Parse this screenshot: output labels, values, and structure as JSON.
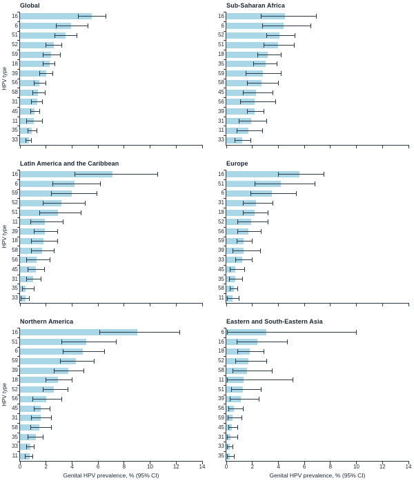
{
  "figure": {
    "xlabel": "Genital HPV prevalence, % (95% CI)",
    "ylabel": "HPV type",
    "colors": {
      "bar": "#a9d7e8",
      "ink": "#2a3744",
      "text": "#1b2531"
    }
  },
  "chart_data": [
    {
      "type": "bar",
      "orientation": "horizontal",
      "title": "Global",
      "xlabel": "Genital HPV prevalence, % (95% CI)",
      "ylabel": "HPV type",
      "xlim": [
        0,
        14
      ],
      "xticks": [
        0,
        2,
        4,
        6,
        8,
        10,
        12,
        14
      ],
      "grid": false,
      "categories": [
        "16",
        "6",
        "51",
        "52",
        "59",
        "18",
        "39",
        "56",
        "58",
        "31",
        "45",
        "11",
        "35",
        "33"
      ],
      "values": [
        5.5,
        3.9,
        3.5,
        2.6,
        2.4,
        2.3,
        2.0,
        1.5,
        1.4,
        1.3,
        1.1,
        1.05,
        0.9,
        0.7
      ],
      "ci_low": [
        4.5,
        2.8,
        2.7,
        2.0,
        1.8,
        1.8,
        1.5,
        1.1,
        1.0,
        0.9,
        0.8,
        0.5,
        0.6,
        0.45
      ],
      "ci_high": [
        6.6,
        5.2,
        4.4,
        3.2,
        3.1,
        2.7,
        2.5,
        2.0,
        1.95,
        1.7,
        1.5,
        1.7,
        1.3,
        0.9
      ]
    },
    {
      "type": "bar",
      "orientation": "horizontal",
      "title": "Sub-Saharan Africa",
      "xlabel": "Genital HPV prevalence, % (95% CI)",
      "ylabel": "HPV type",
      "xlim": [
        0,
        14
      ],
      "xticks": [
        0,
        2,
        4,
        6,
        8,
        10,
        12,
        14
      ],
      "grid": false,
      "categories": [
        "16",
        "6",
        "52",
        "51",
        "18",
        "35",
        "59",
        "58",
        "45",
        "56",
        "39",
        "31",
        "11",
        "33"
      ],
      "values": [
        4.5,
        4.4,
        4.1,
        4.0,
        3.2,
        3.0,
        2.8,
        2.7,
        2.3,
        2.2,
        2.2,
        1.9,
        1.7,
        1.2
      ],
      "ci_low": [
        2.7,
        2.8,
        3.1,
        2.9,
        2.4,
        2.1,
        1.5,
        1.6,
        1.3,
        1.1,
        1.6,
        1.0,
        0.8,
        0.65
      ],
      "ci_high": [
        6.9,
        6.5,
        5.3,
        5.2,
        4.2,
        3.9,
        4.2,
        4.0,
        3.6,
        3.8,
        2.9,
        3.1,
        2.8,
        1.9
      ]
    },
    {
      "type": "bar",
      "orientation": "horizontal",
      "title": "Latin America and the Caribbean",
      "xlabel": "Genital HPV prevalence, % (95% CI)",
      "ylabel": "HPV type",
      "xlim": [
        0,
        14
      ],
      "xticks": [
        0,
        2,
        4,
        6,
        8,
        10,
        12,
        14
      ],
      "grid": false,
      "categories": [
        "16",
        "6",
        "59",
        "52",
        "51",
        "11",
        "39",
        "18",
        "58",
        "56",
        "45",
        "31",
        "35",
        "33"
      ],
      "values": [
        7.1,
        4.2,
        4.0,
        3.2,
        2.9,
        1.9,
        1.9,
        1.8,
        1.7,
        1.25,
        1.2,
        1.0,
        0.45,
        0.4
      ],
      "ci_low": [
        4.2,
        2.5,
        2.4,
        1.8,
        1.5,
        0.8,
        1.1,
        0.9,
        0.9,
        0.5,
        0.6,
        0.5,
        0.2,
        0.1
      ],
      "ci_high": [
        10.6,
        6.2,
        5.9,
        5.0,
        4.7,
        3.3,
        2.9,
        2.9,
        2.6,
        2.3,
        1.9,
        1.6,
        1.1,
        0.7
      ]
    },
    {
      "type": "bar",
      "orientation": "horizontal",
      "title": "Europe",
      "xlabel": "Genital HPV prevalence, % (95% CI)",
      "ylabel": "HPV type",
      "xlim": [
        0,
        14
      ],
      "xticks": [
        0,
        2,
        4,
        6,
        8,
        10,
        12,
        14
      ],
      "grid": false,
      "categories": [
        "16",
        "51",
        "6",
        "31",
        "18",
        "52",
        "56",
        "59",
        "39",
        "33",
        "45",
        "35",
        "58",
        "11"
      ],
      "values": [
        5.6,
        4.2,
        3.5,
        2.3,
        2.2,
        1.9,
        1.7,
        1.35,
        1.3,
        1.2,
        0.7,
        0.7,
        0.6,
        0.5
      ],
      "ci_low": [
        4.0,
        2.2,
        1.9,
        1.3,
        1.3,
        0.9,
        0.9,
        0.8,
        0.5,
        0.7,
        0.3,
        0.25,
        0.3,
        0.1
      ],
      "ci_high": [
        7.5,
        6.8,
        5.4,
        3.6,
        3.2,
        3.2,
        2.7,
        2.0,
        2.6,
        2.0,
        1.4,
        1.25,
        0.9,
        1.0
      ]
    },
    {
      "type": "bar",
      "orientation": "horizontal",
      "title": "Northern America",
      "xlabel": "Genital HPV prevalence, % (95% CI)",
      "ylabel": "HPV type",
      "xlim": [
        0,
        14
      ],
      "xticks": [
        0,
        2,
        4,
        6,
        8,
        10,
        12,
        14
      ],
      "grid": false,
      "categories": [
        "16",
        "51",
        "6",
        "59",
        "39",
        "18",
        "52",
        "56",
        "45",
        "31",
        "58",
        "35",
        "33",
        "11"
      ],
      "values": [
        9.0,
        5.1,
        4.8,
        4.3,
        3.7,
        2.9,
        2.6,
        2.0,
        1.6,
        1.6,
        1.5,
        1.2,
        0.8,
        0.75
      ],
      "ci_low": [
        6.1,
        3.2,
        3.3,
        3.1,
        2.6,
        2.0,
        1.8,
        1.0,
        1.1,
        0.9,
        0.8,
        0.6,
        0.5,
        0.4
      ],
      "ci_high": [
        12.3,
        7.4,
        6.5,
        5.7,
        4.9,
        4.0,
        3.7,
        3.2,
        2.3,
        2.4,
        2.4,
        1.8,
        1.1,
        1.0
      ]
    },
    {
      "type": "bar",
      "orientation": "horizontal",
      "title": "Eastern and South-Eastern Asia",
      "xlabel": "Genital HPV prevalence, % (95% CI)",
      "ylabel": "HPV type",
      "xlim": [
        0,
        14
      ],
      "xticks": [
        0,
        2,
        4,
        6,
        8,
        10,
        12,
        14
      ],
      "grid": false,
      "categories": [
        "6",
        "16",
        "18",
        "52",
        "58",
        "11",
        "51",
        "39",
        "56",
        "59",
        "45",
        "31",
        "33",
        "35"
      ],
      "values": [
        3.1,
        2.4,
        1.8,
        1.7,
        1.6,
        1.35,
        1.25,
        1.1,
        0.6,
        0.5,
        0.4,
        0.3,
        0.25,
        0.25
      ],
      "ci_low": [
        0.1,
        0.8,
        0.9,
        0.7,
        0.5,
        0.1,
        0.4,
        0.3,
        0.2,
        0.15,
        0.2,
        0.1,
        0.1,
        0.1
      ],
      "ci_high": [
        10.0,
        4.7,
        2.9,
        3.1,
        3.5,
        5.1,
        2.7,
        2.5,
        1.3,
        1.2,
        0.9,
        0.9,
        0.5,
        0.6
      ]
    }
  ]
}
